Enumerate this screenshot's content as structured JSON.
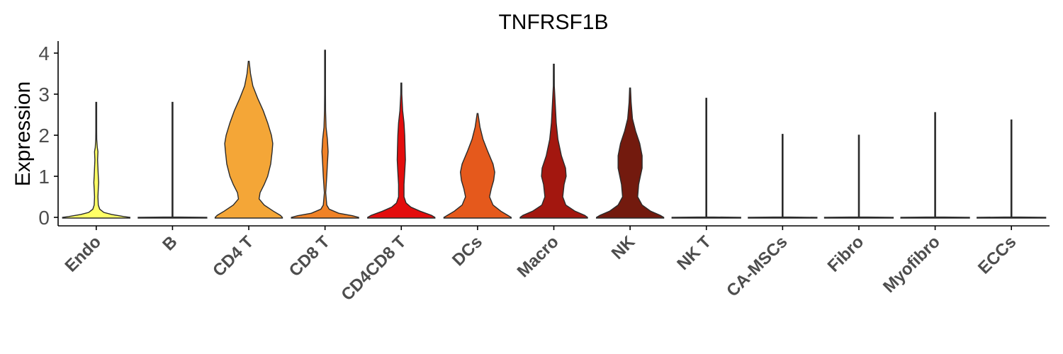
{
  "chart_data": {
    "type": "violin",
    "title": "TNFRSF1B",
    "xlabel": "",
    "ylabel": "Expression",
    "ylim": [
      -0.2,
      4.25
    ],
    "yticks": [
      0,
      1,
      2,
      3,
      4
    ],
    "grid": false,
    "legend": "none",
    "categories": [
      "Endo",
      "B",
      "CD4 T",
      "CD8 T",
      "CD4CD8 T",
      "DCs",
      "Macro",
      "NK",
      "NK T",
      "CA-MSCs",
      "Fibro",
      "Myofibro",
      "ECCs"
    ],
    "colors": [
      "#FFFF66",
      "#F2F26B",
      "#F4A637",
      "#F08227",
      "#E30D0D",
      "#E5591C",
      "#A3170F",
      "#731A0E",
      "#FFFFFF",
      "#FFFFFF",
      "#FFFFFF",
      "#FFFFFF",
      "#FFFFFF"
    ],
    "max_values": [
      2.8,
      2.8,
      3.8,
      4.07,
      3.27,
      2.53,
      3.73,
      3.15,
      2.9,
      2.02,
      2.0,
      2.55,
      2.37
    ],
    "density_profiles": [
      [
        [
          0,
          0.98
        ],
        [
          0.02,
          0.8
        ],
        [
          0.07,
          0.45
        ],
        [
          0.12,
          0.22
        ],
        [
          0.2,
          0.1
        ],
        [
          0.3,
          0.06
        ],
        [
          0.5,
          0.05
        ],
        [
          0.7,
          0.06
        ],
        [
          0.85,
          0.07
        ],
        [
          1.0,
          0.06
        ],
        [
          1.2,
          0.05
        ],
        [
          1.4,
          0.04
        ],
        [
          1.6,
          0.05
        ],
        [
          1.7,
          0.03
        ],
        [
          1.9,
          0.015
        ],
        [
          2.1,
          0.008
        ],
        [
          2.8,
          0
        ]
      ],
      [
        [
          0,
          1.0
        ],
        [
          0.01,
          0.0
        ],
        [
          2.8,
          0
        ]
      ],
      [
        [
          0,
          0.98
        ],
        [
          0.05,
          0.92
        ],
        [
          0.15,
          0.72
        ],
        [
          0.3,
          0.45
        ],
        [
          0.45,
          0.3
        ],
        [
          0.6,
          0.33
        ],
        [
          0.8,
          0.45
        ],
        [
          1.0,
          0.55
        ],
        [
          1.3,
          0.64
        ],
        [
          1.6,
          0.68
        ],
        [
          1.8,
          0.7
        ],
        [
          2.0,
          0.66
        ],
        [
          2.3,
          0.55
        ],
        [
          2.6,
          0.42
        ],
        [
          2.9,
          0.26
        ],
        [
          3.2,
          0.12
        ],
        [
          3.5,
          0.05
        ],
        [
          3.8,
          0
        ]
      ],
      [
        [
          0,
          0.98
        ],
        [
          0.04,
          0.8
        ],
        [
          0.1,
          0.4
        ],
        [
          0.2,
          0.12
        ],
        [
          0.3,
          0.05
        ],
        [
          0.6,
          0.02
        ],
        [
          1.0,
          0.05
        ],
        [
          1.3,
          0.07
        ],
        [
          1.6,
          0.09
        ],
        [
          1.9,
          0.07
        ],
        [
          2.2,
          0.03
        ],
        [
          2.6,
          0.015
        ],
        [
          3.0,
          0.008
        ],
        [
          4.07,
          0
        ]
      ],
      [
        [
          0,
          0.98
        ],
        [
          0.05,
          0.88
        ],
        [
          0.15,
          0.55
        ],
        [
          0.25,
          0.28
        ],
        [
          0.35,
          0.14
        ],
        [
          0.5,
          0.08
        ],
        [
          0.8,
          0.08
        ],
        [
          1.1,
          0.1
        ],
        [
          1.4,
          0.12
        ],
        [
          1.7,
          0.11
        ],
        [
          2.0,
          0.1
        ],
        [
          2.3,
          0.08
        ],
        [
          2.6,
          0.04
        ],
        [
          3.0,
          0.015
        ],
        [
          3.27,
          0
        ]
      ],
      [
        [
          0,
          0.98
        ],
        [
          0.05,
          0.88
        ],
        [
          0.15,
          0.68
        ],
        [
          0.3,
          0.45
        ],
        [
          0.5,
          0.35
        ],
        [
          0.7,
          0.4
        ],
        [
          0.9,
          0.47
        ],
        [
          1.1,
          0.5
        ],
        [
          1.3,
          0.45
        ],
        [
          1.6,
          0.3
        ],
        [
          1.9,
          0.16
        ],
        [
          2.2,
          0.07
        ],
        [
          2.53,
          0
        ]
      ],
      [
        [
          0,
          0.98
        ],
        [
          0.05,
          0.9
        ],
        [
          0.15,
          0.62
        ],
        [
          0.3,
          0.35
        ],
        [
          0.5,
          0.26
        ],
        [
          0.8,
          0.3
        ],
        [
          1.0,
          0.36
        ],
        [
          1.2,
          0.34
        ],
        [
          1.5,
          0.22
        ],
        [
          1.9,
          0.12
        ],
        [
          2.3,
          0.07
        ],
        [
          2.8,
          0.04
        ],
        [
          3.2,
          0.015
        ],
        [
          3.73,
          0
        ]
      ],
      [
        [
          0,
          0.98
        ],
        [
          0.05,
          0.88
        ],
        [
          0.15,
          0.6
        ],
        [
          0.3,
          0.35
        ],
        [
          0.5,
          0.22
        ],
        [
          0.8,
          0.25
        ],
        [
          1.0,
          0.3
        ],
        [
          1.2,
          0.35
        ],
        [
          1.5,
          0.35
        ],
        [
          1.8,
          0.28
        ],
        [
          2.1,
          0.16
        ],
        [
          2.4,
          0.07
        ],
        [
          2.8,
          0.03
        ],
        [
          3.15,
          0
        ]
      ],
      [
        [
          0,
          1.0
        ],
        [
          0.01,
          0.0
        ],
        [
          2.9,
          0
        ]
      ],
      [
        [
          0,
          1.0
        ],
        [
          0.01,
          0.0
        ],
        [
          2.02,
          0
        ]
      ],
      [
        [
          0,
          1.0
        ],
        [
          0.01,
          0.0
        ],
        [
          2.0,
          0
        ]
      ],
      [
        [
          0,
          1.0
        ],
        [
          0.01,
          0.0
        ],
        [
          2.55,
          0
        ]
      ],
      [
        [
          0,
          1.0
        ],
        [
          0.01,
          0.0
        ],
        [
          2.37,
          0
        ]
      ]
    ]
  }
}
